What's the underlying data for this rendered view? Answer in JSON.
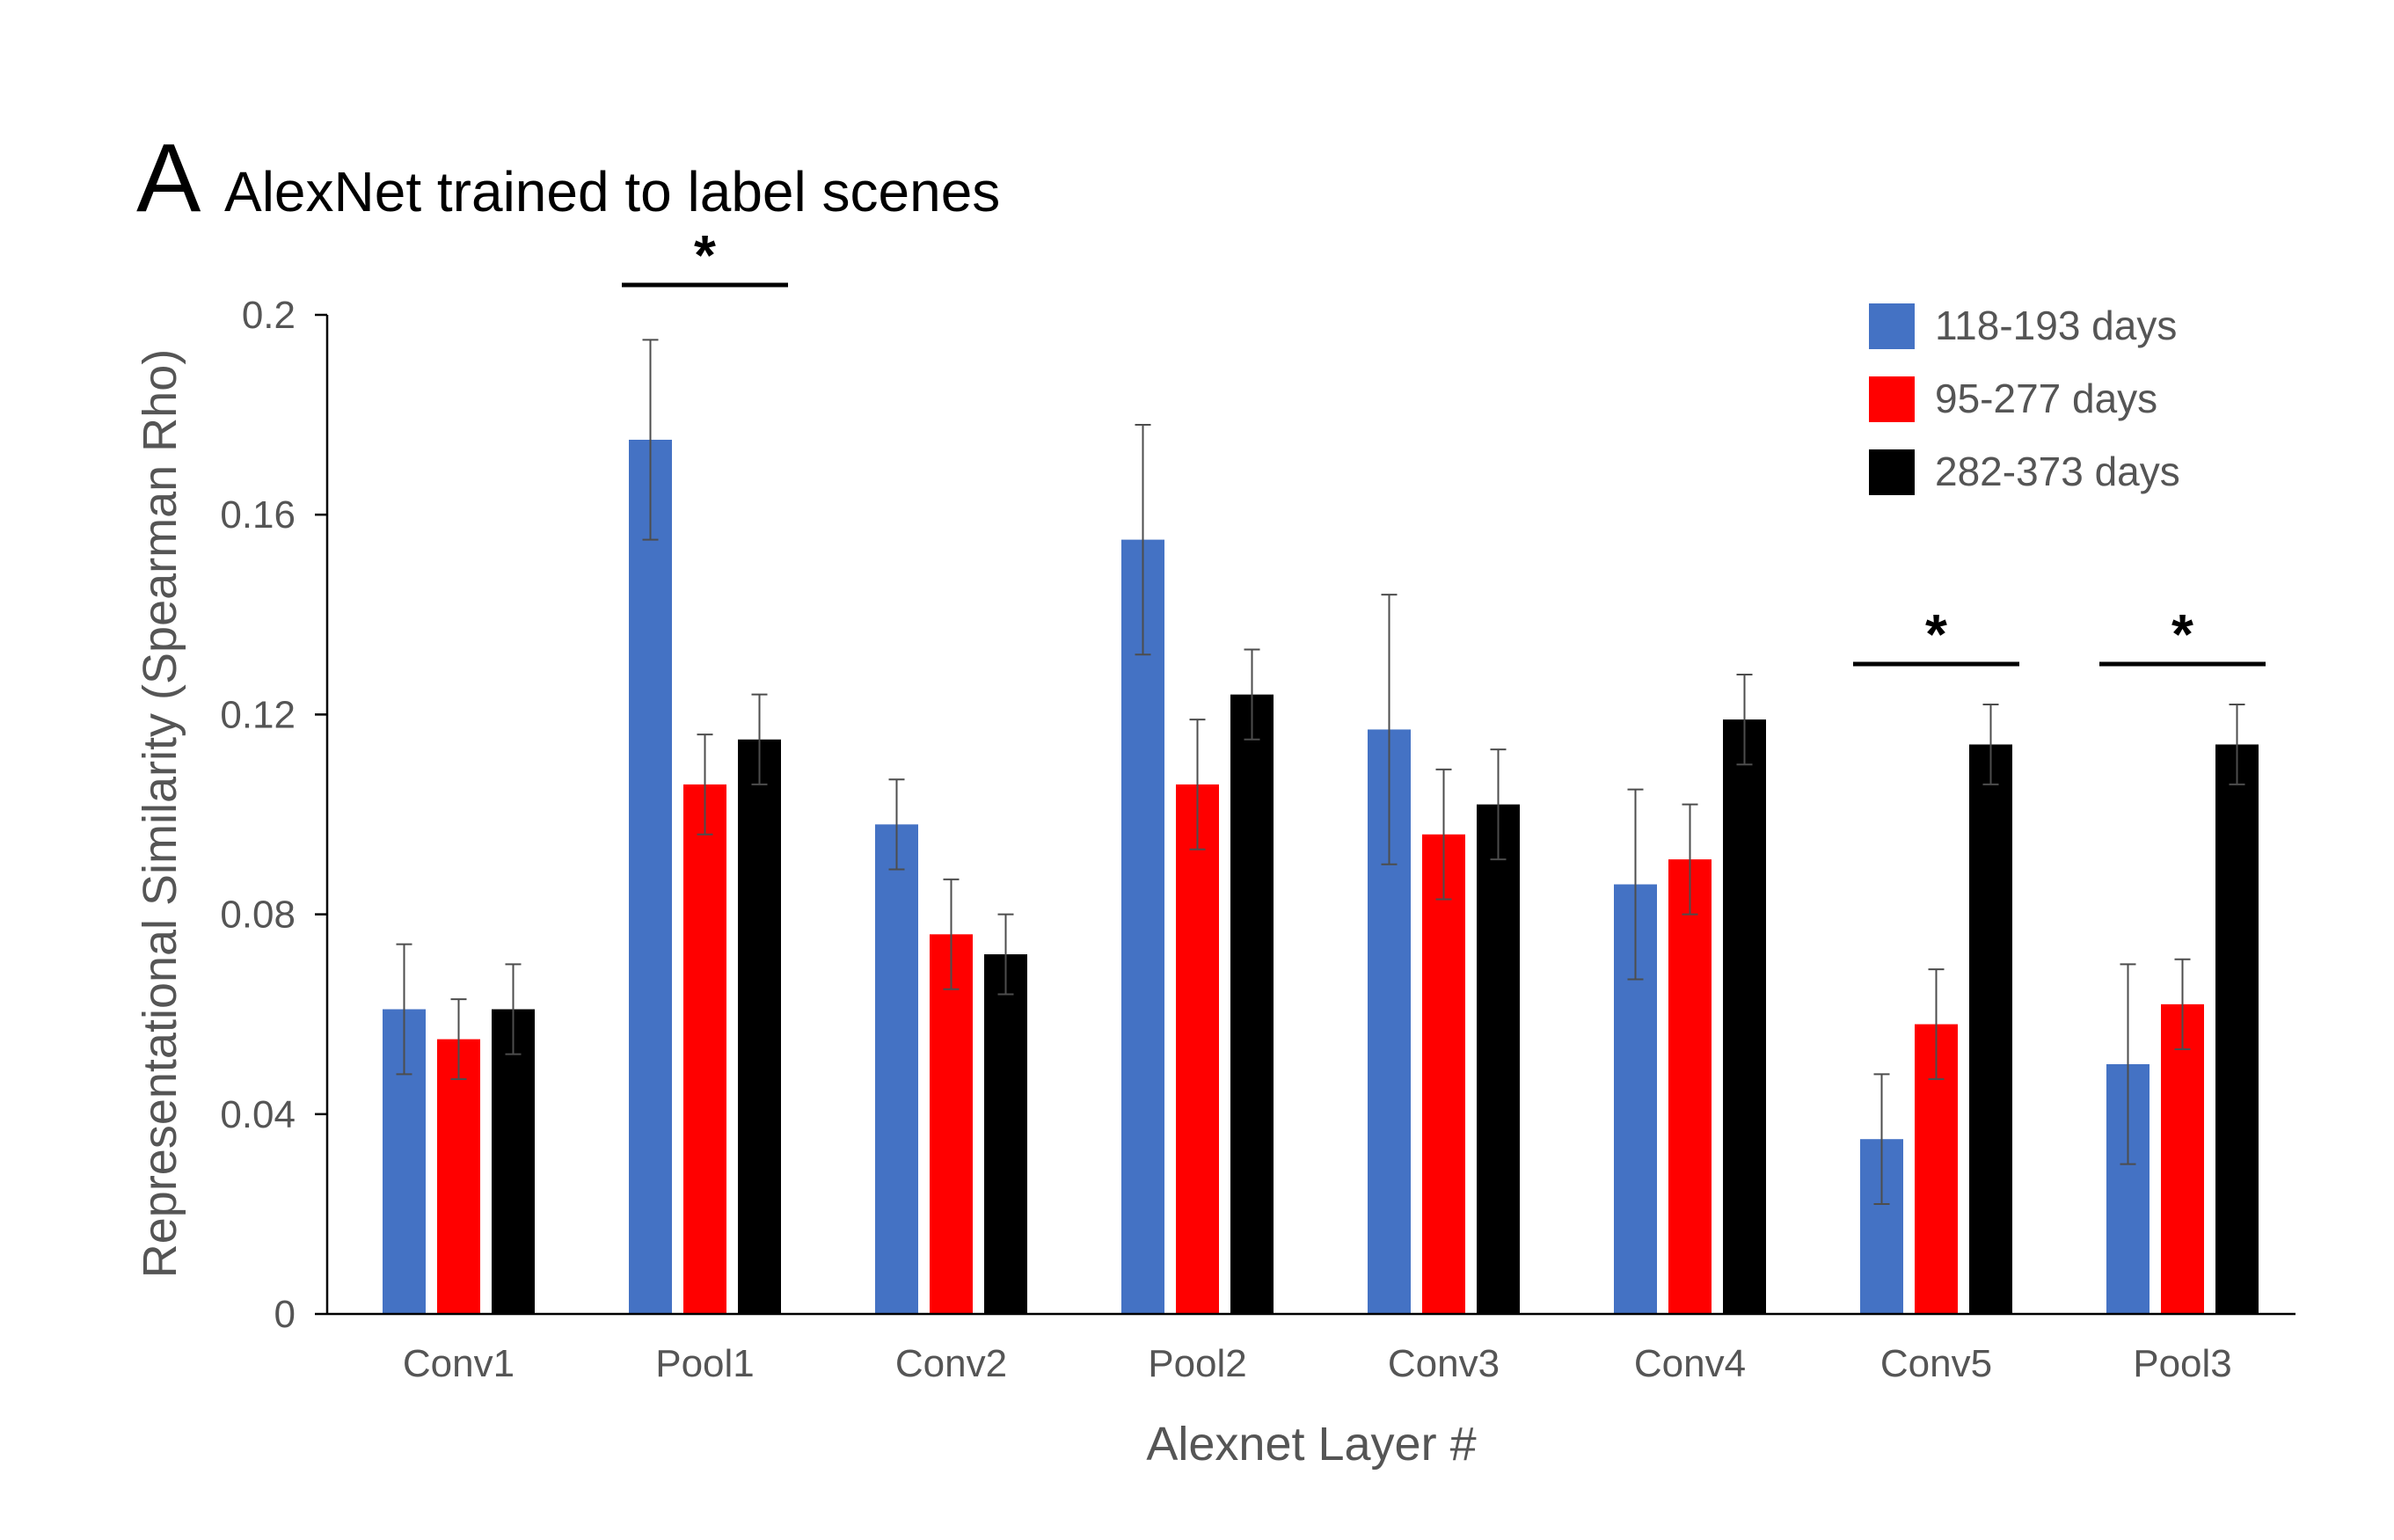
{
  "panel_letter": "A",
  "chart_data": {
    "type": "bar",
    "title": "AlexNet trained to label scenes",
    "xlabel": "Alexnet Layer #",
    "ylabel": "Representational Similarity (Spearman Rho)",
    "ylim": [
      0,
      0.2
    ],
    "yticks": [
      0,
      0.04,
      0.08,
      0.12,
      0.16,
      0.2
    ],
    "ytick_labels": [
      "0",
      "0.04",
      "0.08",
      "0.12",
      "0.16",
      "0.2"
    ],
    "categories": [
      "Conv1",
      "Pool1",
      "Conv2",
      "Pool2",
      "Conv3",
      "Conv4",
      "Conv5",
      "Pool3"
    ],
    "series": [
      {
        "name": "118-193 days",
        "color": "#4472C4",
        "values": [
          0.061,
          0.175,
          0.098,
          0.155,
          0.117,
          0.086,
          0.035,
          0.05
        ],
        "errors": [
          0.013,
          0.02,
          0.009,
          0.023,
          0.027,
          0.019,
          0.013,
          0.02
        ]
      },
      {
        "name": "95-277 days",
        "color": "#FF0000",
        "values": [
          0.055,
          0.106,
          0.076,
          0.106,
          0.096,
          0.091,
          0.058,
          0.062
        ],
        "errors": [
          0.008,
          0.01,
          0.011,
          0.013,
          0.013,
          0.011,
          0.011,
          0.009
        ]
      },
      {
        "name": "282-373 days",
        "color": "#000000",
        "values": [
          0.061,
          0.115,
          0.072,
          0.124,
          0.102,
          0.119,
          0.114,
          0.114
        ],
        "errors": [
          0.009,
          0.009,
          0.008,
          0.009,
          0.011,
          0.009,
          0.008,
          0.008
        ]
      }
    ],
    "significance": [
      {
        "category": "Pool1",
        "label": "*"
      },
      {
        "category": "Conv5",
        "label": "*"
      },
      {
        "category": "Pool3",
        "label": "*"
      }
    ],
    "legend_position": "top-right",
    "grid": false
  }
}
